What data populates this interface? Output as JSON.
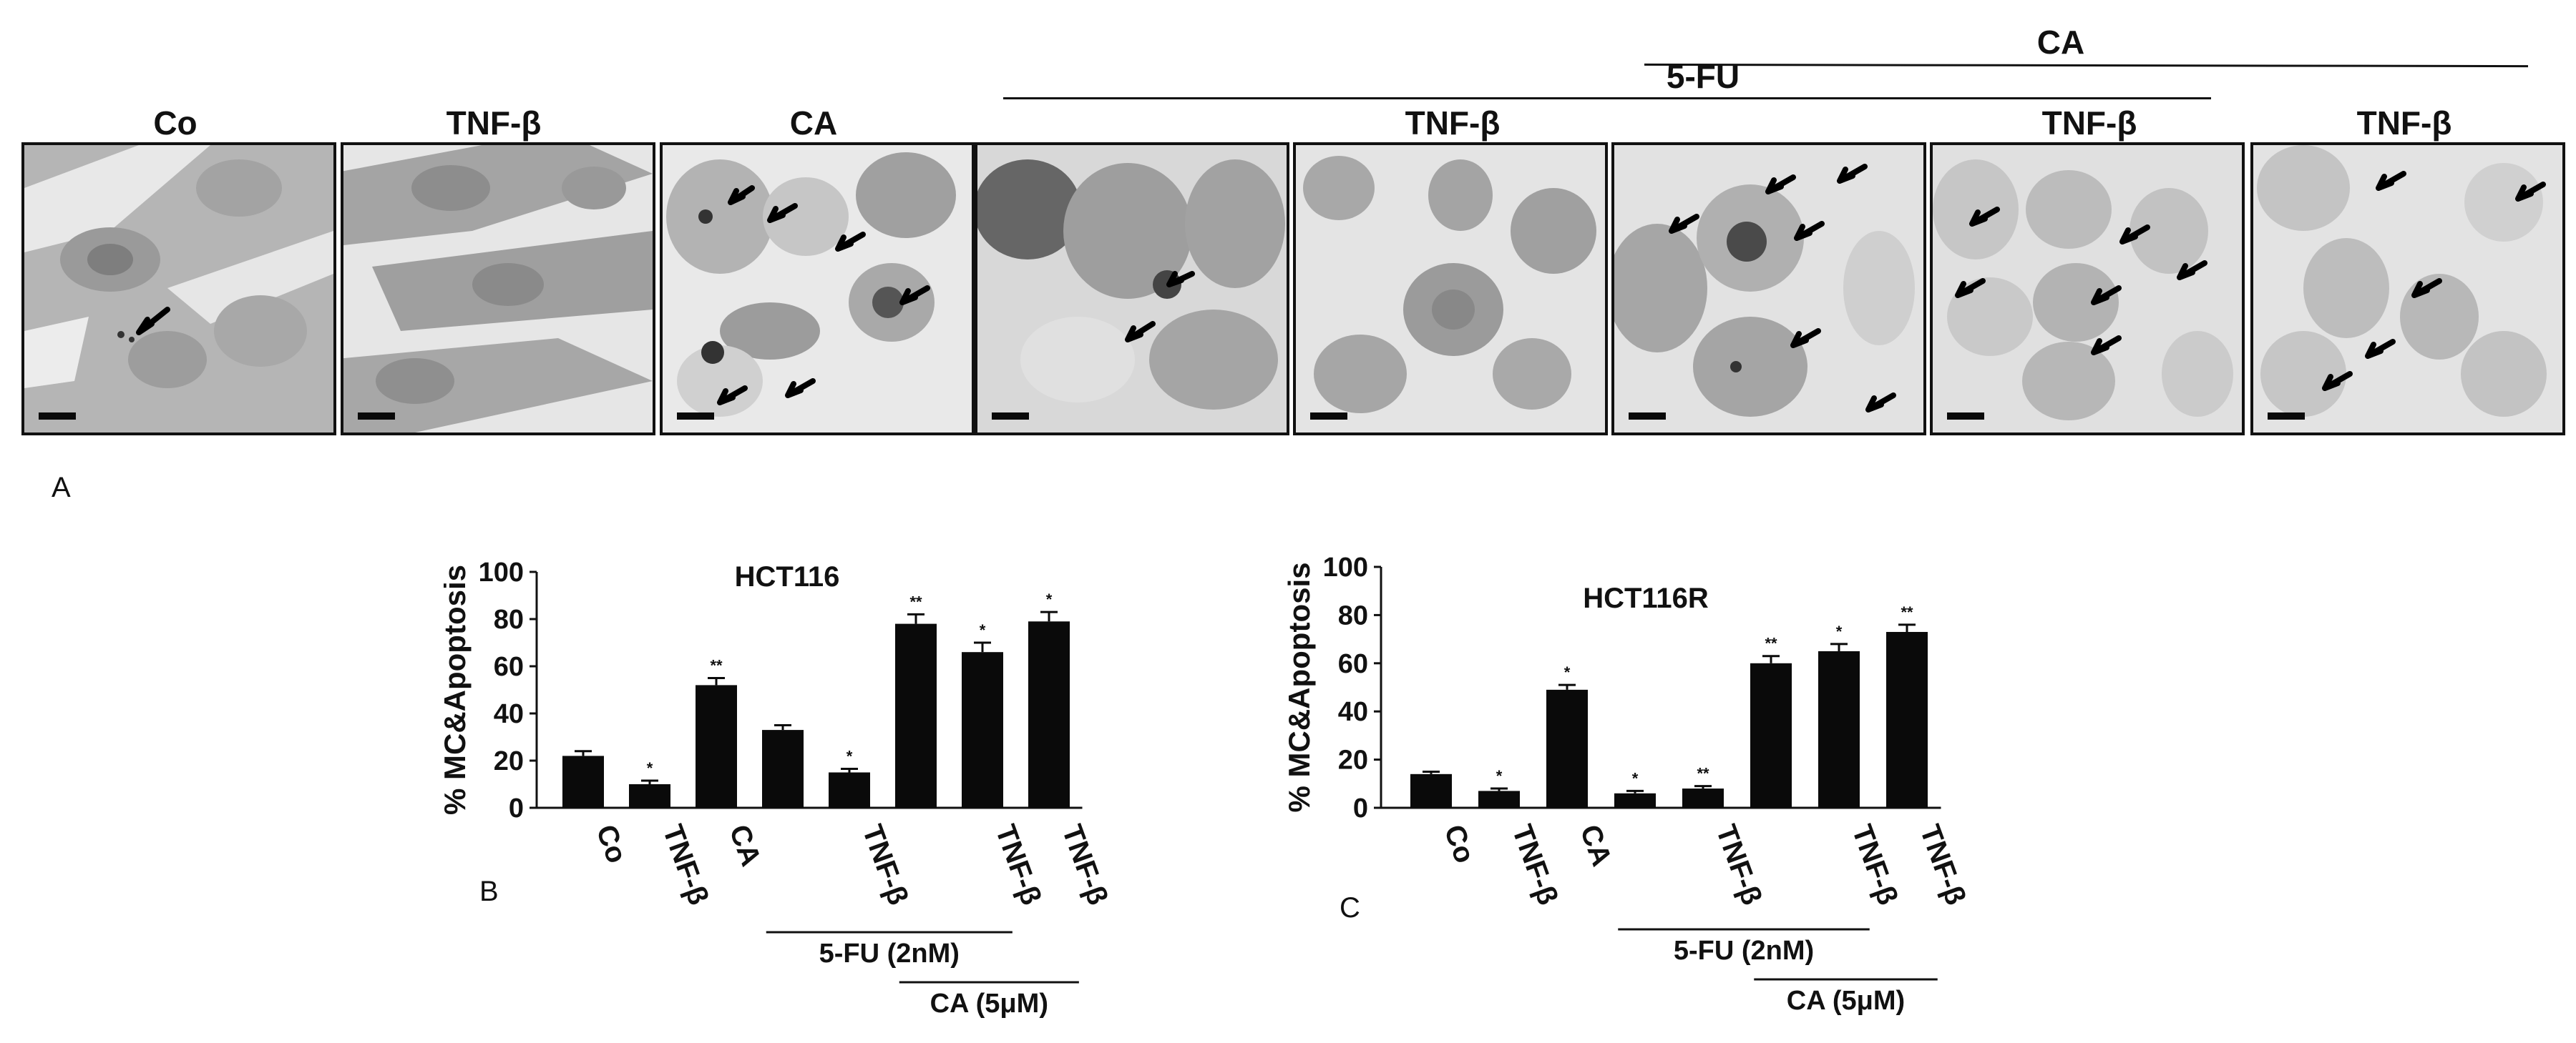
{
  "figure_a": {
    "letter": "A",
    "panel_labels": [
      "Co",
      "TNF-β",
      "CA",
      "TNF-β",
      "TNF-β",
      "TNF-β"
    ],
    "group_5fu": "5-FU",
    "group_ca": "CA"
  },
  "figure_b": {
    "letter": "B"
  },
  "figure_c": {
    "letter": "C"
  },
  "chart_data": [
    {
      "type": "bar",
      "title": "HCT116",
      "ylabel": "% MC&Apoptosis",
      "ylim": [
        0,
        100
      ],
      "yticks": [
        0,
        20,
        40,
        60,
        80,
        100
      ],
      "categories": [
        "Co",
        "TNF-β",
        "CA",
        "",
        "TNF-β",
        "",
        "TNF-β",
        "TNF-β"
      ],
      "values": [
        22,
        10,
        52,
        33,
        15,
        78,
        66,
        79
      ],
      "errors": [
        2,
        1.5,
        3,
        2,
        1.5,
        4,
        4,
        4
      ],
      "significance": [
        "",
        "*",
        "**",
        "",
        "*",
        "**",
        "*",
        "*"
      ],
      "group_labels": [
        {
          "label": "5-FU (2nM)",
          "from": 3,
          "to": 6
        },
        {
          "label": "CA (5μM)",
          "from": 5,
          "to": 7
        }
      ]
    },
    {
      "type": "bar",
      "title": "HCT116R",
      "ylabel": "% MC&Apoptosis",
      "ylim": [
        0,
        100
      ],
      "yticks": [
        0,
        20,
        40,
        60,
        80,
        100
      ],
      "categories": [
        "Co",
        "TNF-β",
        "CA",
        "",
        "TNF-β",
        "",
        "TNF-β",
        "TNF-β"
      ],
      "values": [
        14,
        7,
        49,
        6,
        8,
        60,
        65,
        73
      ],
      "errors": [
        1,
        1,
        2,
        1,
        1,
        3,
        3,
        3
      ],
      "significance": [
        "",
        "*",
        "*",
        "*",
        "**",
        "**",
        "*",
        "**"
      ],
      "group_labels": [
        {
          "label": "5-FU (2nM)",
          "from": 3,
          "to": 6
        },
        {
          "label": "CA (5μM)",
          "from": 5,
          "to": 7
        }
      ]
    }
  ]
}
